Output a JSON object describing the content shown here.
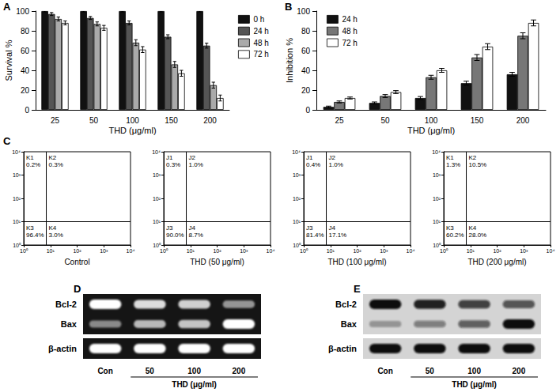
{
  "panel_letters": [
    "A",
    "B",
    "C",
    "D",
    "E"
  ],
  "chart_data": [
    {
      "type": "bar",
      "ylabel": "Survival %",
      "xlabel": "THD (μg/ml)",
      "categories": [
        25,
        50,
        100,
        150,
        200
      ],
      "ylim": [
        0,
        100
      ],
      "yticks": [
        0,
        20,
        40,
        60,
        80,
        100
      ],
      "grid": false,
      "legend": "upper right",
      "series": [
        {
          "name": "0 h",
          "color": "#111111",
          "values": [
            100,
            100,
            100,
            100,
            100
          ],
          "errors": [
            0.8,
            0.8,
            0.8,
            0.8,
            0.8
          ]
        },
        {
          "name": "24 h",
          "color": "#555555",
          "values": [
            97,
            93,
            88,
            74,
            65
          ],
          "errors": [
            1.5,
            1.5,
            2,
            2,
            2.5
          ]
        },
        {
          "name": "48 h",
          "color": "#aaaaaa",
          "values": [
            92,
            87,
            68,
            46,
            25
          ],
          "errors": [
            2,
            2,
            3,
            3,
            3
          ]
        },
        {
          "name": "72 h",
          "color": "#ffffff",
          "values": [
            88,
            83,
            61,
            37,
            12
          ],
          "errors": [
            2,
            2.5,
            3,
            3,
            3
          ]
        }
      ]
    },
    {
      "type": "bar",
      "ylabel": "Inhibition %",
      "xlabel": "THD (μg/ml)",
      "categories": [
        25,
        50,
        100,
        150,
        200
      ],
      "ylim": [
        0,
        100
      ],
      "yticks": [
        0,
        20,
        40,
        60,
        80,
        100
      ],
      "grid": false,
      "legend": "upper left",
      "series": [
        {
          "name": "24 h",
          "color": "#111111",
          "values": [
            3,
            7,
            12,
            27,
            36
          ],
          "errors": [
            0.8,
            1,
            1.5,
            2,
            2
          ]
        },
        {
          "name": "48 h",
          "color": "#777777",
          "values": [
            8,
            14,
            33,
            53,
            75
          ],
          "errors": [
            1,
            1.5,
            2,
            3,
            3
          ]
        },
        {
          "name": "72 h",
          "color": "#ffffff",
          "values": [
            12,
            18,
            40,
            64,
            88
          ],
          "errors": [
            1,
            1.5,
            2,
            3,
            3
          ]
        }
      ]
    },
    {
      "type": "quadrant",
      "log": true,
      "xlabel": "Control",
      "xlim": [
        1,
        10000
      ],
      "ylim": [
        1,
        10000
      ],
      "xticks": [
        {
          "value": 1,
          "label": "10⁰"
        },
        {
          "value": 10,
          "label": "10¹"
        },
        {
          "value": 100,
          "label": "10²"
        },
        {
          "value": 1000,
          "label": "10³"
        },
        {
          "value": 10000,
          "label": "10⁴"
        }
      ],
      "yticks": [
        {
          "value": 1,
          "label": "10⁰"
        },
        {
          "value": 10,
          "label": "10¹"
        },
        {
          "value": 100,
          "label": "10²"
        },
        {
          "value": 1000,
          "label": "10³"
        },
        {
          "value": 10000,
          "label": "10⁴"
        }
      ],
      "gate": {
        "x": 7,
        "y": 10
      },
      "quadrants": [
        {
          "name": "K1",
          "value": 0.2,
          "label": "0.2%"
        },
        {
          "name": "K2",
          "value": 0.3,
          "label": "0.3%"
        },
        {
          "name": "K3",
          "value": 96.4,
          "label": "96.4%"
        },
        {
          "name": "K4",
          "value": 3.0,
          "label": "3.0%"
        }
      ]
    },
    {
      "type": "quadrant",
      "log": true,
      "xlabel": "THD (50 μg/ml)",
      "xlim": [
        1,
        10000
      ],
      "ylim": [
        1,
        10000
      ],
      "xticks": [
        {
          "value": 1,
          "label": "10⁰"
        },
        {
          "value": 10,
          "label": "10¹"
        },
        {
          "value": 100,
          "label": "10²"
        },
        {
          "value": 1000,
          "label": "10³"
        },
        {
          "value": 10000,
          "label": "10⁴"
        }
      ],
      "yticks": [
        {
          "value": 1,
          "label": "10⁰"
        },
        {
          "value": 10,
          "label": "10¹"
        },
        {
          "value": 100,
          "label": "10²"
        },
        {
          "value": 1000,
          "label": "10³"
        },
        {
          "value": 10000,
          "label": "10⁴"
        }
      ],
      "gate": {
        "x": 7,
        "y": 10
      },
      "quadrants": [
        {
          "name": "J1",
          "value": 0.3,
          "label": "0.3%"
        },
        {
          "name": "J2",
          "value": 1.0,
          "label": "1.0%"
        },
        {
          "name": "J3",
          "value": 90.0,
          "label": "90.0%"
        },
        {
          "name": "J4",
          "value": 8.7,
          "label": "8.7%"
        }
      ]
    },
    {
      "type": "quadrant",
      "log": true,
      "xlabel": "THD (100 μg/ml)",
      "xlim": [
        1,
        10000
      ],
      "ylim": [
        1,
        10000
      ],
      "xticks": [
        {
          "value": 1,
          "label": "10⁰"
        },
        {
          "value": 10,
          "label": "10¹"
        },
        {
          "value": 100,
          "label": "10²"
        },
        {
          "value": 1000,
          "label": "10³"
        },
        {
          "value": 10000,
          "label": "10⁴"
        }
      ],
      "yticks": [
        {
          "value": 1,
          "label": "10⁰"
        },
        {
          "value": 10,
          "label": "10¹"
        },
        {
          "value": 100,
          "label": "10²"
        },
        {
          "value": 1000,
          "label": "10³"
        },
        {
          "value": 10000,
          "label": "10⁴"
        }
      ],
      "gate": {
        "x": 7,
        "y": 10
      },
      "quadrants": [
        {
          "name": "J1",
          "value": 0.4,
          "label": "0.4%"
        },
        {
          "name": "J2",
          "value": 1.0,
          "label": "1.0%"
        },
        {
          "name": "J3",
          "value": 81.4,
          "label": "81.4%"
        },
        {
          "name": "J4",
          "value": 17.1,
          "label": "17.1%"
        }
      ]
    },
    {
      "type": "quadrant",
      "log": true,
      "xlabel": "THD (200 μg/ml)",
      "xlim": [
        1,
        10000
      ],
      "ylim": [
        1,
        10000
      ],
      "xticks": [
        {
          "value": 1,
          "label": "10⁰"
        },
        {
          "value": 10,
          "label": "10¹"
        },
        {
          "value": 100,
          "label": "10²"
        },
        {
          "value": 1000,
          "label": "10³"
        },
        {
          "value": 10000,
          "label": "10⁴"
        }
      ],
      "yticks": [
        {
          "value": 1,
          "label": "10⁰"
        },
        {
          "value": 10,
          "label": "10¹"
        },
        {
          "value": 100,
          "label": "10²"
        },
        {
          "value": 1000,
          "label": "10³"
        },
        {
          "value": 10000,
          "label": "10⁴"
        }
      ],
      "gate": {
        "x": 7,
        "y": 10
      },
      "quadrants": [
        {
          "name": "K1",
          "value": 1.3,
          "label": "1.3%"
        },
        {
          "name": "K2",
          "value": 10.5,
          "label": "10.5%"
        },
        {
          "name": "K3",
          "value": 60.2,
          "label": "60.2%"
        },
        {
          "name": "K4",
          "value": 28.0,
          "label": "28.0%"
        }
      ]
    }
  ],
  "blots": [
    {
      "style": "gel",
      "lanes": [
        "Con",
        "50",
        "100",
        "200"
      ],
      "lanes_label": "THD (μg/ml)",
      "rows": [
        {
          "name": "Bcl-2",
          "intensity": [
            1.0,
            0.85,
            0.8,
            0.55
          ]
        },
        {
          "name": "Bax",
          "intensity": [
            0.5,
            0.7,
            0.75,
            1.0
          ]
        },
        {
          "name": "β-actin",
          "intensity": [
            1.0,
            1.0,
            1.0,
            1.0
          ]
        }
      ]
    },
    {
      "style": "western",
      "lanes": [
        "Con",
        "50",
        "100",
        "200"
      ],
      "lanes_label": "THD (μg/ml)",
      "rows": [
        {
          "name": "Bcl-2",
          "intensity": [
            1.0,
            0.9,
            0.75,
            0.65
          ]
        },
        {
          "name": "Bax",
          "intensity": [
            0.3,
            0.45,
            0.6,
            1.0
          ]
        },
        {
          "name": "β-actin",
          "intensity": [
            1.0,
            1.0,
            1.0,
            1.0
          ]
        }
      ]
    }
  ]
}
